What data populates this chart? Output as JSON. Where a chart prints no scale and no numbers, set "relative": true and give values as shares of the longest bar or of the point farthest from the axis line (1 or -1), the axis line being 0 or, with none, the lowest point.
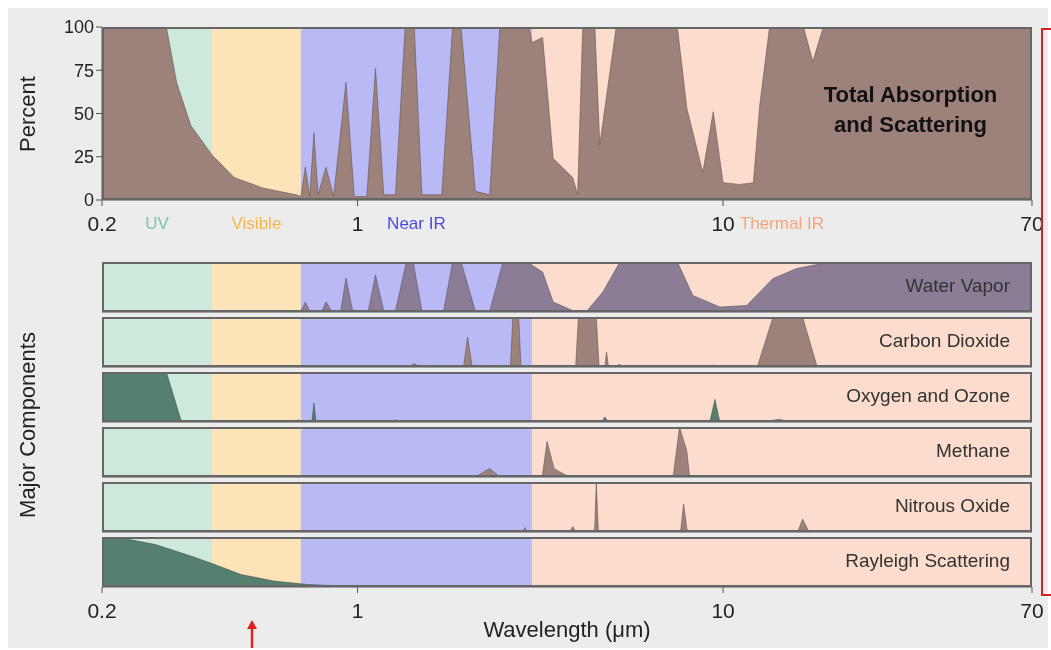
{
  "chart_data": [
    {
      "type": "area",
      "ylabel": "Percent",
      "annotations": [
        "Total Absorption and Scattering"
      ],
      "log": "x",
      "xlim": [
        0.2,
        70
      ],
      "xticks": [
        0.2,
        1,
        10,
        70
      ],
      "ylim": [
        0,
        100
      ],
      "yticks": [
        0,
        25,
        50,
        75,
        100
      ],
      "bands": [
        {
          "axis": "x",
          "from": 0.2,
          "to": 0.4,
          "label": "UV",
          "color": "#cde9dc"
        },
        {
          "axis": "x",
          "from": 0.4,
          "to": 0.7,
          "label": "Visible",
          "color": "#fde3b8"
        },
        {
          "axis": "x",
          "from": 0.7,
          "to": 3,
          "label": "Near IR",
          "color": "#b9b9f5"
        },
        {
          "axis": "x",
          "from": 3,
          "to": 70,
          "label": "Thermal IR",
          "color": "#fcdccc"
        }
      ],
      "series": [
        {
          "color": "#9c827a",
          "x": [
            0.2,
            0.3,
            0.32,
            0.35,
            0.4,
            0.46,
            0.55,
            0.68,
            0.7,
            0.72,
            0.74,
            0.76,
            0.78,
            0.82,
            0.86,
            0.93,
            0.98,
            1.06,
            1.12,
            1.18,
            1.27,
            1.35,
            1.43,
            1.5,
            1.7,
            1.82,
            1.92,
            2.1,
            2.3,
            2.45,
            2.95,
            3.0,
            3.21,
            3.43,
            3.88,
            4.0,
            4.13,
            4.46,
            4.6,
            5.1,
            7.5,
            7.96,
            8.8,
            9.4,
            10,
            11.1,
            12.1,
            12.6,
            13.4,
            16.6,
            17.6,
            18.8,
            70
          ],
          "values": [
            100,
            100,
            68,
            43,
            26,
            13,
            7,
            3,
            2,
            19,
            2,
            39,
            3,
            19,
            2,
            68,
            2,
            2,
            76,
            3,
            3,
            100,
            100,
            3,
            3,
            100,
            100,
            5,
            3,
            100,
            100,
            91,
            94,
            24,
            13,
            3,
            100,
            100,
            32,
            100,
            100,
            53,
            16,
            51,
            10,
            9,
            10,
            55,
            100,
            100,
            80,
            100,
            100
          ]
        }
      ]
    },
    {
      "type": "area",
      "relative": true,
      "tick_labels": false,
      "ylabel": "Major Components",
      "annotations": [
        "Water Vapor"
      ],
      "log": "x",
      "xlim": [
        0.2,
        70
      ],
      "xticks": [
        0.2,
        1,
        10,
        70
      ],
      "bands": [
        {
          "axis": "x",
          "from": 0.2,
          "to": 0.4,
          "color": "#cde9dc"
        },
        {
          "axis": "x",
          "from": 0.4,
          "to": 0.7,
          "color": "#fde3b8"
        },
        {
          "axis": "x",
          "from": 0.7,
          "to": 3,
          "color": "#b9b9f5"
        },
        {
          "axis": "x",
          "from": 3,
          "to": 70,
          "color": "#fcdccc"
        }
      ],
      "series": [
        {
          "color": "#8c7d96",
          "x": [
            0.2,
            0.6,
            0.7,
            0.72,
            0.74,
            0.8,
            0.82,
            0.85,
            0.9,
            0.93,
            0.97,
            1.07,
            1.12,
            1.18,
            1.27,
            1.36,
            1.42,
            1.5,
            1.72,
            1.82,
            1.92,
            2.1,
            2.3,
            2.5,
            2.95,
            3.01,
            3.21,
            3.43,
            3.88,
            4.24,
            4.69,
            5.22,
            7.5,
            8.27,
            9.8,
            11.6,
            13.7,
            15.9,
            19.6,
            70
          ],
          "values": [
            0,
            0,
            0.02,
            0.2,
            0.02,
            0.02,
            0.2,
            0.02,
            0.02,
            0.68,
            0.02,
            0.02,
            0.74,
            0.02,
            0.02,
            1,
            1,
            0.02,
            0.02,
            1,
            1,
            0.02,
            0.02,
            1,
            1,
            0.93,
            0.8,
            0.2,
            0.03,
            0.02,
            0.4,
            1,
            1,
            0.33,
            0.1,
            0.13,
            0.67,
            0.87,
            1,
            1
          ]
        }
      ]
    },
    {
      "type": "area",
      "relative": true,
      "tick_labels": false,
      "annotations": [
        "Carbon Dioxide"
      ],
      "log": "x",
      "xlim": [
        0.2,
        70
      ],
      "xticks": [
        0.2,
        1,
        10,
        70
      ],
      "bands": [
        {
          "axis": "x",
          "from": 0.2,
          "to": 0.4,
          "color": "#cde9dc"
        },
        {
          "axis": "x",
          "from": 0.4,
          "to": 0.7,
          "color": "#fde3b8"
        },
        {
          "axis": "x",
          "from": 0.7,
          "to": 3,
          "color": "#b9b9f5"
        },
        {
          "axis": "x",
          "from": 3,
          "to": 70,
          "color": "#fcdccc"
        }
      ],
      "series": [
        {
          "color": "#9c827a",
          "x": [
            0.2,
            1.38,
            1.43,
            1.48,
            1.57,
            1.6,
            1.63,
            1.95,
            2.0,
            2.06,
            2.62,
            2.66,
            2.76,
            2.8,
            3.95,
            4.02,
            4.5,
            4.58,
            4.75,
            4.8,
            4.86,
            5.1,
            5.2,
            5.3,
            9.2,
            9.4,
            9.6,
            10.1,
            10.3,
            10.5,
            12.4,
            13.7,
            16.5,
            18.1,
            70
          ],
          "values": [
            0,
            0,
            0.07,
            0,
            0,
            0.03,
            0,
            0,
            0.6,
            0,
            0,
            1,
            1,
            0,
            0,
            1,
            1,
            0,
            0,
            0.3,
            0,
            0,
            0.06,
            0,
            0,
            0.04,
            0,
            0,
            0.03,
            0,
            0,
            1,
            1,
            0,
            0
          ]
        }
      ]
    },
    {
      "type": "area",
      "relative": true,
      "tick_labels": false,
      "annotations": [
        "Oxygen and Ozone"
      ],
      "log": "x",
      "xlim": [
        0.2,
        70
      ],
      "xticks": [
        0.2,
        1,
        10,
        70
      ],
      "bands": [
        {
          "axis": "x",
          "from": 0.2,
          "to": 0.4,
          "color": "#cde9dc"
        },
        {
          "axis": "x",
          "from": 0.4,
          "to": 0.7,
          "color": "#fde3b8"
        },
        {
          "axis": "x",
          "from": 0.7,
          "to": 3,
          "color": "#b9b9f5"
        },
        {
          "axis": "x",
          "from": 3,
          "to": 70,
          "color": "#fcdccc"
        }
      ],
      "series": [
        {
          "color": "#557f6e",
          "x": [
            0.2,
            0.3,
            0.33,
            0.68,
            0.69,
            0.7,
            0.75,
            0.76,
            0.77,
            1.25,
            1.27,
            1.29,
            4.65,
            4.75,
            4.85,
            9.2,
            9.5,
            9.8,
            12.5,
            14.2,
            16,
            70
          ],
          "values": [
            1,
            1,
            0,
            0,
            0.05,
            0,
            0,
            0.38,
            0,
            0,
            0.05,
            0,
            0,
            0.1,
            0,
            0,
            0.45,
            0,
            0,
            0.05,
            0,
            0
          ]
        }
      ]
    },
    {
      "type": "area",
      "relative": true,
      "tick_labels": false,
      "annotations": [
        "Methane"
      ],
      "log": "x",
      "xlim": [
        0.2,
        70
      ],
      "xticks": [
        0.2,
        1,
        10,
        70
      ],
      "bands": [
        {
          "axis": "x",
          "from": 0.2,
          "to": 0.4,
          "color": "#cde9dc"
        },
        {
          "axis": "x",
          "from": 0.4,
          "to": 0.7,
          "color": "#fde3b8"
        },
        {
          "axis": "x",
          "from": 0.7,
          "to": 3,
          "color": "#b9b9f5"
        },
        {
          "axis": "x",
          "from": 3,
          "to": 70,
          "color": "#fcdccc"
        }
      ],
      "series": [
        {
          "color": "#9c827a",
          "x": [
            0.2,
            1.6,
            1.68,
            1.76,
            2.1,
            2.3,
            2.45,
            3.2,
            3.3,
            3.45,
            3.6,
            3.8,
            7.3,
            7.6,
            7.96,
            8.1,
            70
          ],
          "values": [
            0,
            0,
            0.03,
            0,
            0,
            0.17,
            0,
            0,
            0.71,
            0.17,
            0.09,
            0,
            0,
            1,
            0.52,
            0,
            0
          ]
        }
      ]
    },
    {
      "type": "area",
      "relative": true,
      "tick_labels": false,
      "annotations": [
        "Nitrous Oxide"
      ],
      "log": "x",
      "xlim": [
        0.2,
        70
      ],
      "xticks": [
        0.2,
        1,
        10,
        70
      ],
      "bands": [
        {
          "axis": "x",
          "from": 0.2,
          "to": 0.4,
          "color": "#cde9dc"
        },
        {
          "axis": "x",
          "from": 0.4,
          "to": 0.7,
          "color": "#fde3b8"
        },
        {
          "axis": "x",
          "from": 0.7,
          "to": 3,
          "color": "#b9b9f5"
        },
        {
          "axis": "x",
          "from": 3,
          "to": 70,
          "color": "#fcdccc"
        }
      ],
      "series": [
        {
          "color": "#9c827a",
          "x": [
            0.2,
            2.84,
            2.87,
            2.9,
            3.8,
            3.88,
            3.96,
            4.45,
            4.5,
            4.56,
            7.65,
            7.8,
            7.96,
            8.1,
            16.0,
            16.5,
            17.2,
            70
          ],
          "values": [
            0,
            0,
            0.09,
            0,
            0,
            0.11,
            0,
            0,
            1,
            0,
            0,
            0.56,
            0.06,
            0,
            0,
            0.26,
            0,
            0
          ]
        }
      ]
    },
    {
      "type": "area",
      "relative": true,
      "xlabel": "Wavelength (μm)",
      "annotations": [
        "Rayleigh Scattering"
      ],
      "log": "x",
      "xlim": [
        0.2,
        70
      ],
      "xticks": [
        0.2,
        1,
        10,
        70
      ],
      "bands": [
        {
          "axis": "x",
          "from": 0.2,
          "to": 0.4,
          "color": "#cde9dc"
        },
        {
          "axis": "x",
          "from": 0.4,
          "to": 0.7,
          "color": "#fde3b8"
        },
        {
          "axis": "x",
          "from": 0.7,
          "to": 3,
          "color": "#b9b9f5"
        },
        {
          "axis": "x",
          "from": 3,
          "to": 70,
          "color": "#fcdccc"
        }
      ],
      "series": [
        {
          "color": "#557f6e",
          "x": [
            0.2,
            0.226,
            0.28,
            0.35,
            0.4,
            0.48,
            0.59,
            0.73,
            1.0,
            1.3,
            70
          ],
          "values": [
            1,
            0.98,
            0.85,
            0.62,
            0.47,
            0.25,
            0.12,
            0.05,
            0.01,
            0,
            0
          ]
        }
      ]
    }
  ]
}
